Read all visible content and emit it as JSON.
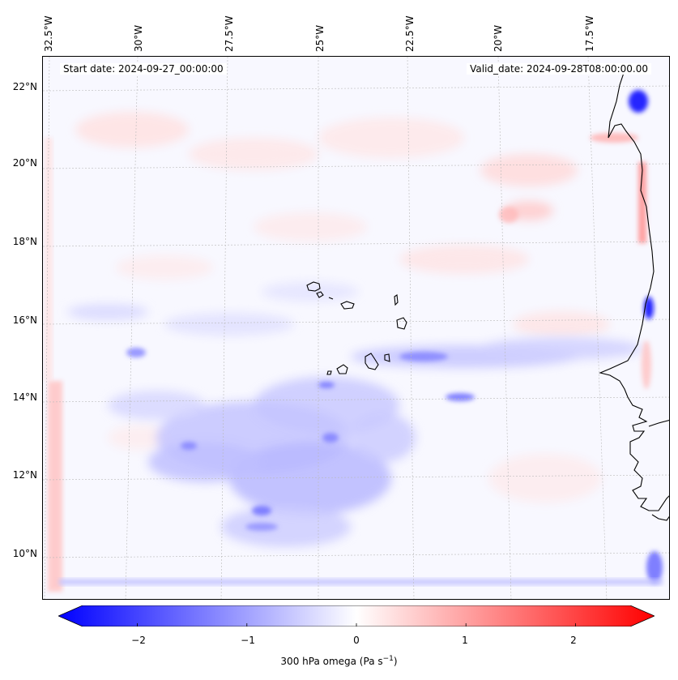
{
  "map": {
    "start_date": "Start date: 2024-09-27_00:00:00",
    "valid_date": "Valid_date: 2024-09-28T08:00:00.00",
    "lon_labels": [
      "32.5°W",
      "30°W",
      "27.5°W",
      "25°W",
      "22.5°W",
      "20°W",
      "17.5°W"
    ],
    "lat_labels": [
      "22°N",
      "20°N",
      "18°N",
      "16°N",
      "14°N",
      "12°N",
      "10°N"
    ],
    "extent": {
      "lon_min": -32.7,
      "lon_max": -15.9,
      "lat_min": 8.8,
      "lat_max": 22.8
    }
  },
  "colorbar": {
    "ticks": [
      "−2",
      "−1",
      "0",
      "1",
      "2"
    ],
    "tick_values": [
      -2,
      -1,
      0,
      1,
      2
    ],
    "range": [
      -2.5,
      2.5
    ],
    "label": "300 hPa omega (Pa s",
    "label_sup": "−1",
    "label_end": ")",
    "colors": {
      "negative": "#0000ff",
      "zero": "#ffffff",
      "positive": "#ff0000"
    }
  }
}
